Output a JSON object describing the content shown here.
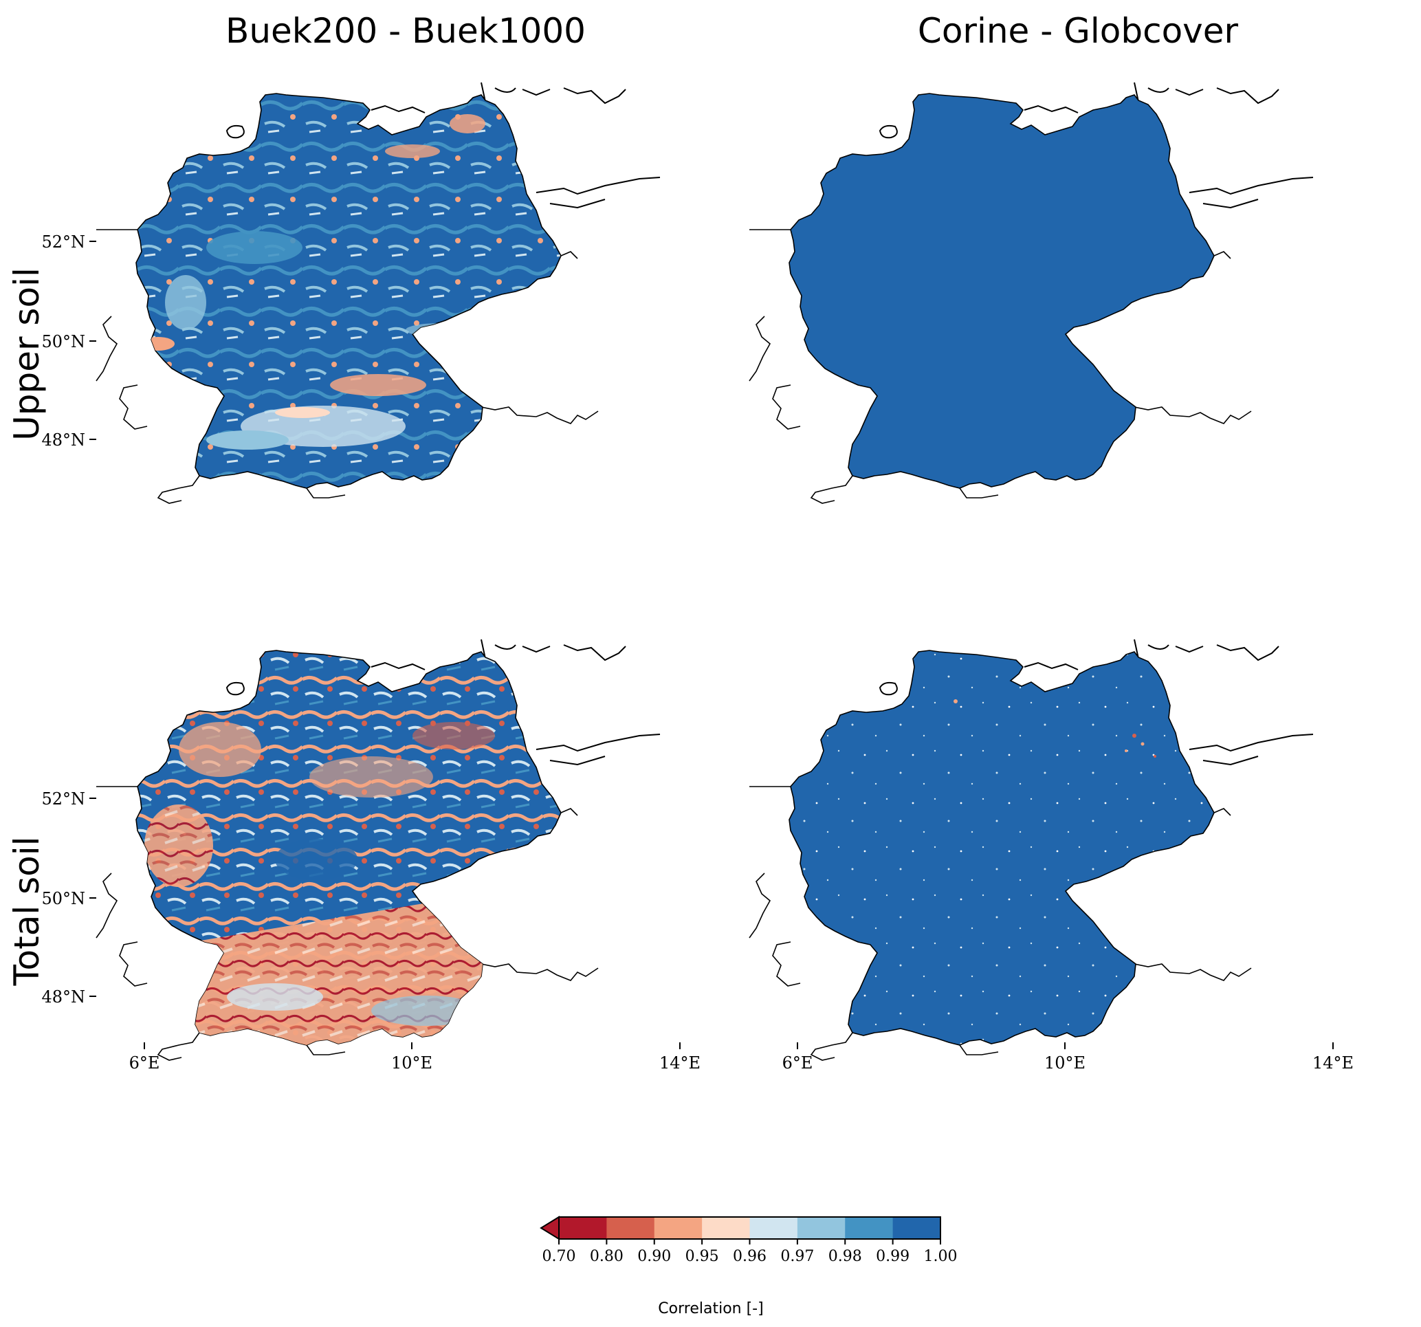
{
  "columns": [
    "Buek200 - Buek1000",
    "Corine - Globcover"
  ],
  "rows": [
    "Upper soil",
    "Total soil"
  ],
  "lat_ticks": [
    "52°N",
    "50°N",
    "48°N"
  ],
  "lon_ticks": [
    "6°E",
    "10°E",
    "14°E"
  ],
  "colorbar": {
    "title": "Correlation [-]",
    "ticks": [
      "0.70",
      "0.80",
      "0.90",
      "0.95",
      "0.96",
      "0.97",
      "0.98",
      "0.99",
      "1.00"
    ],
    "colors": [
      "#b2182b",
      "#d6604d",
      "#f4a582",
      "#fddbc7",
      "#d1e5f0",
      "#92c5de",
      "#4393c3",
      "#2166ac"
    ],
    "extend": "min"
  },
  "panels": [
    {
      "column": 0,
      "row": 0,
      "dominant_class": "0.99-1.00",
      "mix": {
        "#2166ac": 0.62,
        "#4393c3": 0.14,
        "#92c5de": 0.08,
        "#d1e5f0": 0.06,
        "#fddbc7": 0.03,
        "#f4a582": 0.06,
        "#d6604d": 0.01
      }
    },
    {
      "column": 1,
      "row": 0,
      "dominant_class": "0.99-1.00",
      "mix": {
        "#2166ac": 0.995,
        "#d1e5f0": 0.005
      }
    },
    {
      "column": 0,
      "row": 1,
      "dominant_class": "mixed",
      "mix": {
        "#2166ac": 0.45,
        "#4393c3": 0.08,
        "#92c5de": 0.06,
        "#d1e5f0": 0.08,
        "#fddbc7": 0.06,
        "#f4a582": 0.17,
        "#d6604d": 0.06,
        "#b2182b": 0.04
      }
    },
    {
      "column": 1,
      "row": 1,
      "dominant_class": "0.99-1.00",
      "mix": {
        "#2166ac": 0.975,
        "#d1e5f0": 0.015,
        "#f4a582": 0.006,
        "#d6604d": 0.004
      }
    }
  ]
}
